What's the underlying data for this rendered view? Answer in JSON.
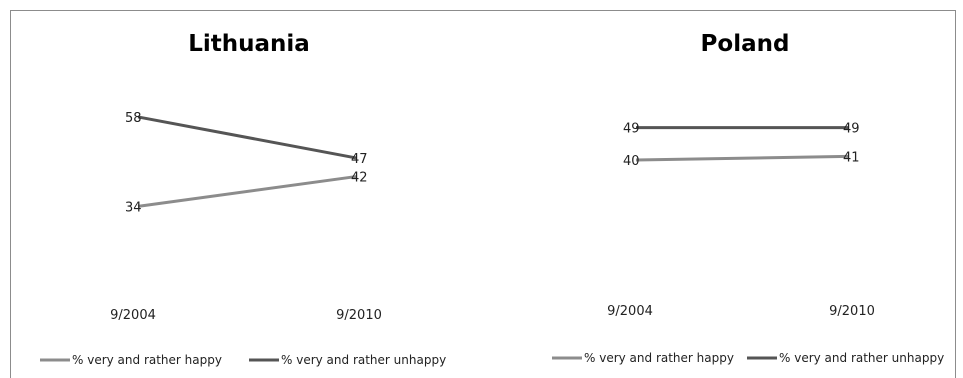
{
  "colors": {
    "happy": "#8c8c8c",
    "unhappy": "#555555"
  },
  "chart_data": [
    {
      "type": "line",
      "title": "Lithuania",
      "x": [
        "9/2004",
        "9/2010"
      ],
      "series": [
        {
          "name": "% very and rather happy",
          "values": [
            34,
            42
          ],
          "labels": [
            "34",
            "42"
          ],
          "color": "#8c8c8c"
        },
        {
          "name": "% very and rather unhappy",
          "values": [
            58,
            47
          ],
          "labels": [
            "58",
            "47"
          ],
          "color": "#555555"
        }
      ],
      "ylim": [
        0,
        100
      ],
      "grid": false,
      "legend": "bottom"
    },
    {
      "type": "line",
      "title": "Poland",
      "x": [
        "9/2004",
        "9/2010"
      ],
      "series": [
        {
          "name": "% very and rather happy",
          "values": [
            40,
            41
          ],
          "labels": [
            "40",
            "41"
          ],
          "color": "#8c8c8c"
        },
        {
          "name": "% very and rather unhappy",
          "values": [
            49,
            49
          ],
          "labels": [
            "49",
            "49"
          ],
          "color": "#555555"
        }
      ],
      "ylim": [
        0,
        100
      ],
      "grid": false,
      "legend": "bottom"
    }
  ]
}
